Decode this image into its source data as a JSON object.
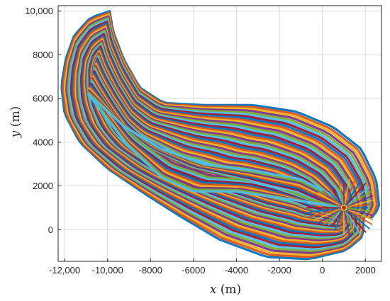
{
  "chart_data": {
    "type": "line",
    "title": "",
    "xlabel": {
      "var": "x",
      "unit": " (m)"
    },
    "ylabel": {
      "var": "y",
      "unit": " (m)"
    },
    "xlim": [
      -12300,
      2750
    ],
    "ylim": [
      -1450,
      10250
    ],
    "grid": true,
    "legend": "none",
    "x_ticks": [
      {
        "value": -12000,
        "label": "-12,000"
      },
      {
        "value": -10000,
        "label": "-10,000"
      },
      {
        "value": -8000,
        "label": "-8000"
      },
      {
        "value": -6000,
        "label": "-6000"
      },
      {
        "value": -4000,
        "label": "-4000"
      },
      {
        "value": -2000,
        "label": "-2000"
      },
      {
        "value": 0,
        "label": "0"
      },
      {
        "value": 2000,
        "label": "2000"
      }
    ],
    "y_ticks": [
      {
        "value": 0,
        "label": "0"
      },
      {
        "value": 2000,
        "label": "2000"
      },
      {
        "value": 4000,
        "label": "4000"
      },
      {
        "value": 6000,
        "label": "6000"
      },
      {
        "value": 8000,
        "label": "8000"
      },
      {
        "value": 10000,
        "label": "10,000"
      }
    ],
    "target_point": {
      "x": 1000,
      "y": 1000,
      "color": "#cc2020"
    },
    "envelope_outer": [
      [
        -9900,
        10000
      ],
      [
        -10800,
        9700
      ],
      [
        -11550,
        8900
      ],
      [
        -11950,
        7800
      ],
      [
        -12150,
        6600
      ],
      [
        -12000,
        5300
      ],
      [
        -11300,
        4000
      ],
      [
        -10000,
        2800
      ],
      [
        -8200,
        1600
      ],
      [
        -6600,
        600
      ],
      [
        -4800,
        -450
      ],
      [
        -2600,
        -1250
      ],
      [
        -600,
        -1350
      ],
      [
        1100,
        -950
      ],
      [
        1900,
        -300
      ],
      [
        1900,
        600
      ],
      [
        2300,
        550
      ],
      [
        2650,
        1000
      ],
      [
        2500,
        2300
      ],
      [
        1800,
        3700
      ],
      [
        500,
        4700
      ],
      [
        -1200,
        5400
      ],
      [
        -3200,
        5700
      ],
      [
        -5500,
        5700
      ],
      [
        -7400,
        5800
      ],
      [
        -8500,
        6500
      ],
      [
        -9250,
        7800
      ],
      [
        -9750,
        9100
      ],
      [
        -9900,
        10000
      ]
    ],
    "envelope_inner": [
      [
        -10900,
        6200
      ],
      [
        -9200,
        4700
      ],
      [
        -7500,
        3700
      ],
      [
        -5500,
        3000
      ],
      [
        -3200,
        2700
      ],
      [
        -1000,
        2300
      ],
      [
        600,
        1500
      ],
      [
        1000,
        1000
      ],
      [
        -200,
        1200
      ],
      [
        -2000,
        1450
      ],
      [
        -4000,
        1750
      ],
      [
        -6000,
        1750
      ],
      [
        -7500,
        2400
      ],
      [
        -9100,
        3900
      ],
      [
        -10900,
        6200
      ]
    ],
    "series_count": 48,
    "series_colors": [
      "#0072bd",
      "#d95319",
      "#edb120",
      "#7e2f8e",
      "#77ac30",
      "#4dbeee",
      "#a2142f"
    ]
  }
}
